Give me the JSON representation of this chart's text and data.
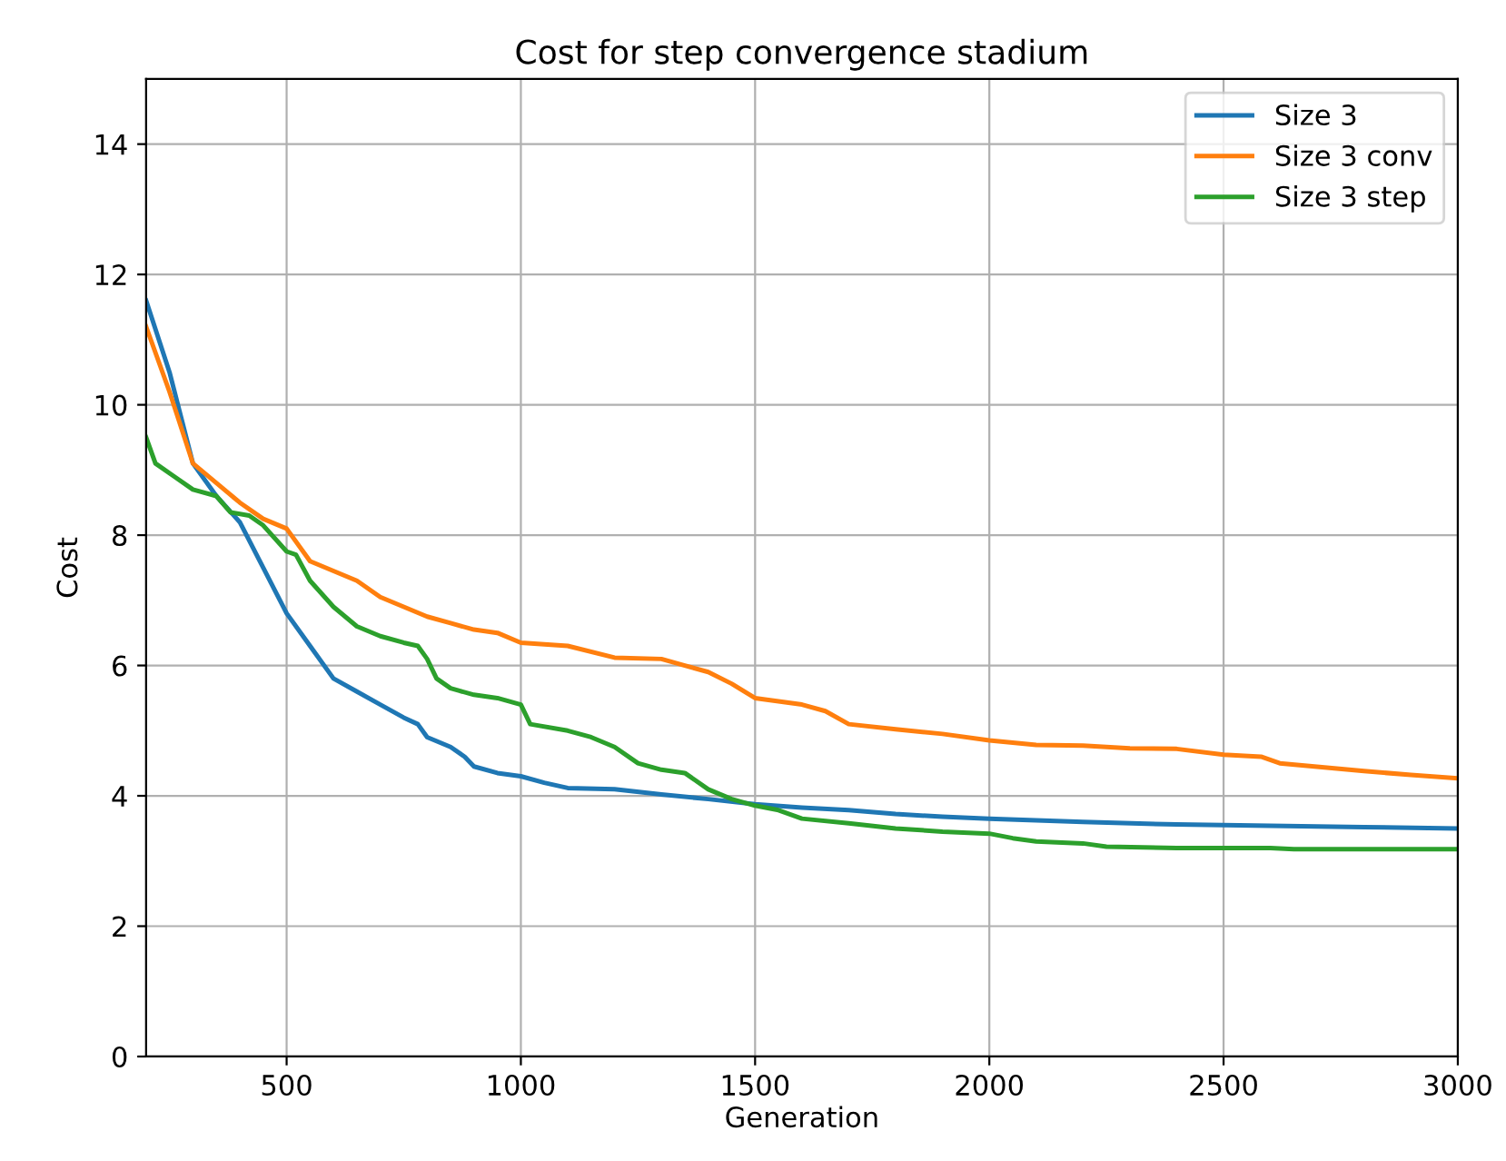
{
  "chart_data": {
    "type": "line",
    "title": "Cost for step convergence stadium",
    "xlabel": "Generation",
    "ylabel": "Cost",
    "xlim": [
      200,
      3000
    ],
    "ylim": [
      0,
      15
    ],
    "xticks": [
      500,
      1000,
      1500,
      2000,
      2500,
      3000
    ],
    "yticks": [
      0,
      2,
      4,
      6,
      8,
      10,
      12,
      14
    ],
    "grid": true,
    "legend": "top right",
    "line_style": "solid",
    "marker": "none",
    "series": [
      {
        "name": "Size 3",
        "color": "#1f77b4",
        "x": [
          200,
          250,
          300,
          350,
          400,
          450,
          500,
          550,
          600,
          650,
          700,
          750,
          780,
          800,
          850,
          880,
          900,
          950,
          1000,
          1050,
          1100,
          1200,
          1300,
          1400,
          1500,
          1600,
          1700,
          1800,
          1900,
          2000,
          2200,
          2400,
          2600,
          2800,
          3000
        ],
        "values": [
          11.6,
          10.5,
          9.1,
          8.6,
          8.2,
          7.5,
          6.8,
          6.3,
          5.8,
          5.6,
          5.4,
          5.2,
          5.1,
          4.9,
          4.75,
          4.6,
          4.45,
          4.35,
          4.3,
          4.2,
          4.12,
          4.1,
          4.02,
          3.95,
          3.87,
          3.82,
          3.78,
          3.72,
          3.68,
          3.65,
          3.6,
          3.56,
          3.54,
          3.52,
          3.5
        ]
      },
      {
        "name": "Size 3 conv",
        "color": "#ff7f0e",
        "x": [
          200,
          250,
          300,
          350,
          400,
          450,
          500,
          550,
          600,
          650,
          700,
          750,
          800,
          850,
          900,
          950,
          1000,
          1100,
          1200,
          1300,
          1350,
          1400,
          1450,
          1500,
          1600,
          1650,
          1700,
          1800,
          1900,
          2000,
          2100,
          2200,
          2300,
          2400,
          2500,
          2580,
          2620,
          2800,
          2900,
          3000
        ],
        "values": [
          11.2,
          10.2,
          9.1,
          8.8,
          8.5,
          8.25,
          8.1,
          7.6,
          7.45,
          7.3,
          7.05,
          6.9,
          6.75,
          6.65,
          6.55,
          6.5,
          6.35,
          6.3,
          6.12,
          6.1,
          6.0,
          5.9,
          5.72,
          5.5,
          5.4,
          5.3,
          5.1,
          5.02,
          4.95,
          4.85,
          4.78,
          4.77,
          4.73,
          4.72,
          4.63,
          4.6,
          4.5,
          4.38,
          4.32,
          4.27
        ]
      },
      {
        "name": "Size 3 step",
        "color": "#2ca02c",
        "x": [
          200,
          220,
          260,
          300,
          350,
          380,
          420,
          450,
          500,
          520,
          550,
          600,
          650,
          700,
          750,
          780,
          800,
          820,
          850,
          900,
          950,
          1000,
          1020,
          1100,
          1150,
          1200,
          1250,
          1300,
          1350,
          1400,
          1450,
          1500,
          1550,
          1600,
          1700,
          1800,
          1900,
          2000,
          2050,
          2100,
          2200,
          2250,
          2400,
          2600,
          2650,
          3000
        ],
        "values": [
          9.5,
          9.1,
          8.9,
          8.7,
          8.6,
          8.35,
          8.3,
          8.15,
          7.75,
          7.7,
          7.3,
          6.9,
          6.6,
          6.45,
          6.35,
          6.3,
          6.1,
          5.8,
          5.65,
          5.55,
          5.5,
          5.4,
          5.1,
          5.0,
          4.9,
          4.75,
          4.5,
          4.4,
          4.35,
          4.1,
          3.95,
          3.85,
          3.78,
          3.65,
          3.58,
          3.5,
          3.45,
          3.42,
          3.35,
          3.3,
          3.27,
          3.22,
          3.2,
          3.2,
          3.18,
          3.18
        ]
      }
    ]
  }
}
